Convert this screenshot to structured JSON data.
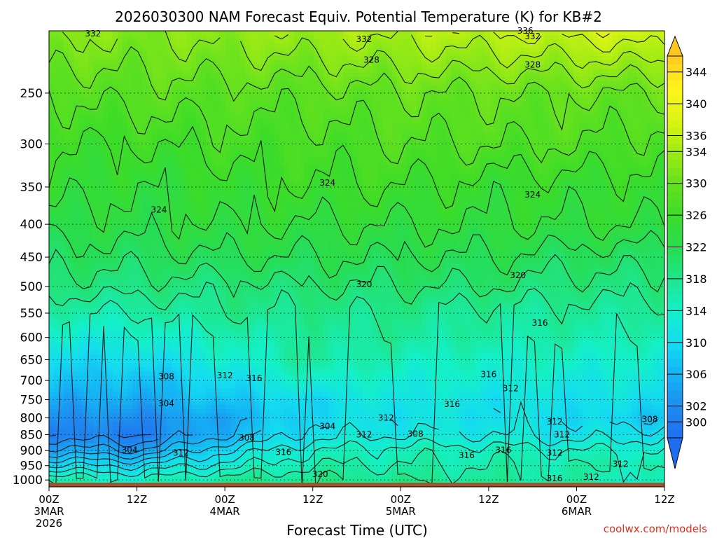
{
  "chart_data": {
    "type": "heatmap",
    "title": "2026030300 NAM Forecast Equiv. Potential Temperature (K) for KB#2",
    "xlabel": "Forecast Time (UTC)",
    "ylabel": "",
    "credit": "coolwx.com/models",
    "y_axis": {
      "scale": "log",
      "inverted": true,
      "range": [
        1025,
        200
      ],
      "ticks": [
        250,
        300,
        350,
        400,
        450,
        500,
        550,
        600,
        650,
        700,
        750,
        800,
        850,
        900,
        950,
        1000
      ]
    },
    "x_axis": {
      "range_hours": [
        0,
        84
      ],
      "ticks": [
        {
          "h": 0,
          "label": "00Z",
          "sub": "3MAR",
          "sub2": "2026"
        },
        {
          "h": 12,
          "label": "12Z",
          "sub": "",
          "sub2": ""
        },
        {
          "h": 24,
          "label": "00Z",
          "sub": "4MAR",
          "sub2": ""
        },
        {
          "h": 36,
          "label": "12Z",
          "sub": "",
          "sub2": ""
        },
        {
          "h": 48,
          "label": "00Z",
          "sub": "5MAR",
          "sub2": ""
        },
        {
          "h": 60,
          "label": "12Z",
          "sub": "",
          "sub2": ""
        },
        {
          "h": 72,
          "label": "00Z",
          "sub": "6MAR",
          "sub2": ""
        },
        {
          "h": 84,
          "label": "12Z",
          "sub": "",
          "sub2": ""
        }
      ]
    },
    "colorbar": {
      "labels": [
        300,
        302,
        306,
        310,
        314,
        318,
        322,
        326,
        330,
        334,
        336,
        340,
        344
      ],
      "range": [
        298,
        346
      ],
      "colors": [
        {
          "v": 298,
          "c": "#1e6ef0"
        },
        {
          "v": 302,
          "c": "#1e8cf0"
        },
        {
          "v": 306,
          "c": "#14b4f5"
        },
        {
          "v": 310,
          "c": "#14dcf0"
        },
        {
          "v": 314,
          "c": "#14f0c8"
        },
        {
          "v": 318,
          "c": "#1ee68c"
        },
        {
          "v": 322,
          "c": "#28dc50"
        },
        {
          "v": 326,
          "c": "#3cdc28"
        },
        {
          "v": 330,
          "c": "#64e11e"
        },
        {
          "v": 334,
          "c": "#a0eb14"
        },
        {
          "v": 338,
          "c": "#dcf514"
        },
        {
          "v": 342,
          "c": "#fff51e"
        },
        {
          "v": 346,
          "c": "#ffc81e"
        }
      ]
    },
    "profile": [
      {
        "p": 1000,
        "theta_e": [
          316,
          314,
          317,
          318,
          318,
          317,
          316,
          314
        ]
      },
      {
        "p": 950,
        "theta_e": [
          310,
          310,
          313,
          316,
          316,
          316,
          316,
          316
        ]
      },
      {
        "p": 900,
        "theta_e": [
          305,
          304,
          310,
          314,
          315,
          315,
          314,
          314
        ]
      },
      {
        "p": 850,
        "theta_e": [
          301,
          300,
          306,
          311,
          312,
          312,
          311,
          311
        ]
      },
      {
        "p": 800,
        "theta_e": [
          303,
          302,
          305,
          310,
          311,
          311,
          310,
          308
        ]
      },
      {
        "p": 750,
        "theta_e": [
          305,
          305,
          308,
          310,
          312,
          311,
          311,
          310
        ]
      },
      {
        "p": 700,
        "theta_e": [
          308,
          307,
          310,
          314,
          313,
          313,
          312,
          312
        ]
      },
      {
        "p": 650,
        "theta_e": [
          310,
          310,
          313,
          317,
          315,
          314,
          314,
          313
        ]
      },
      {
        "p": 600,
        "theta_e": [
          313,
          313,
          315,
          317,
          317,
          316,
          316,
          315
        ]
      },
      {
        "p": 550,
        "theta_e": [
          316,
          316,
          318,
          318,
          318,
          317,
          317,
          317
        ]
      },
      {
        "p": 500,
        "theta_e": [
          319,
          319,
          319,
          320,
          320,
          320,
          319,
          319
        ]
      },
      {
        "p": 450,
        "theta_e": [
          321,
          321,
          322,
          322,
          322,
          322,
          321,
          321
        ]
      },
      {
        "p": 400,
        "theta_e": [
          323,
          323,
          324,
          324,
          324,
          324,
          324,
          324
        ]
      },
      {
        "p": 350,
        "theta_e": [
          325,
          324,
          325,
          326,
          326,
          325,
          325,
          325
        ]
      },
      {
        "p": 300,
        "theta_e": [
          326,
          326,
          327,
          327,
          328,
          328,
          328,
          327
        ]
      },
      {
        "p": 250,
        "theta_e": [
          328,
          329,
          329,
          329,
          330,
          330,
          330,
          330
        ]
      },
      {
        "p": 200,
        "theta_e": [
          333,
          332,
          333,
          334,
          335,
          336,
          337,
          338
        ]
      }
    ],
    "contour_labels": [
      {
        "h": 6,
        "p": 202,
        "t": "332"
      },
      {
        "h": 43,
        "p": 206,
        "t": "332"
      },
      {
        "h": 65,
        "p": 200,
        "t": "336"
      },
      {
        "h": 66,
        "p": 204,
        "t": "332"
      },
      {
        "h": 44,
        "p": 222,
        "t": "328"
      },
      {
        "h": 66,
        "p": 226,
        "t": "328"
      },
      {
        "h": 38,
        "p": 345,
        "t": "324"
      },
      {
        "h": 15,
        "p": 380,
        "t": "324"
      },
      {
        "h": 66,
        "p": 360,
        "t": "324"
      },
      {
        "h": 43,
        "p": 496,
        "t": "320"
      },
      {
        "h": 64,
        "p": 480,
        "t": "320"
      },
      {
        "h": 67,
        "p": 570,
        "t": "316"
      },
      {
        "h": 60,
        "p": 685,
        "t": "316"
      },
      {
        "h": 16,
        "p": 690,
        "t": "308"
      },
      {
        "h": 24,
        "p": 688,
        "t": "312"
      },
      {
        "h": 28,
        "p": 695,
        "t": "316"
      },
      {
        "h": 63,
        "p": 720,
        "t": "312"
      },
      {
        "h": 55,
        "p": 762,
        "t": "316"
      },
      {
        "h": 16,
        "p": 760,
        "t": "304"
      },
      {
        "h": 46,
        "p": 800,
        "t": "312"
      },
      {
        "h": 38,
        "p": 825,
        "t": "304"
      },
      {
        "h": 43,
        "p": 850,
        "t": "312"
      },
      {
        "h": 50,
        "p": 848,
        "t": "308"
      },
      {
        "h": 69,
        "p": 812,
        "t": "312"
      },
      {
        "h": 82,
        "p": 805,
        "t": "308"
      },
      {
        "h": 70,
        "p": 850,
        "t": "312"
      },
      {
        "h": 27,
        "p": 860,
        "t": "308"
      },
      {
        "h": 11,
        "p": 898,
        "t": "304"
      },
      {
        "h": 18,
        "p": 908,
        "t": "312"
      },
      {
        "h": 32,
        "p": 905,
        "t": "316"
      },
      {
        "h": 57,
        "p": 915,
        "t": "316"
      },
      {
        "h": 62,
        "p": 898,
        "t": "316"
      },
      {
        "h": 69,
        "p": 908,
        "t": "312"
      },
      {
        "h": 78,
        "p": 945,
        "t": "312"
      },
      {
        "h": 37,
        "p": 980,
        "t": "320"
      },
      {
        "h": 69,
        "p": 995,
        "t": "316"
      },
      {
        "h": 74,
        "p": 990,
        "t": "312"
      }
    ],
    "ground": {
      "color": "#a0522d",
      "p_top": 1010
    }
  }
}
